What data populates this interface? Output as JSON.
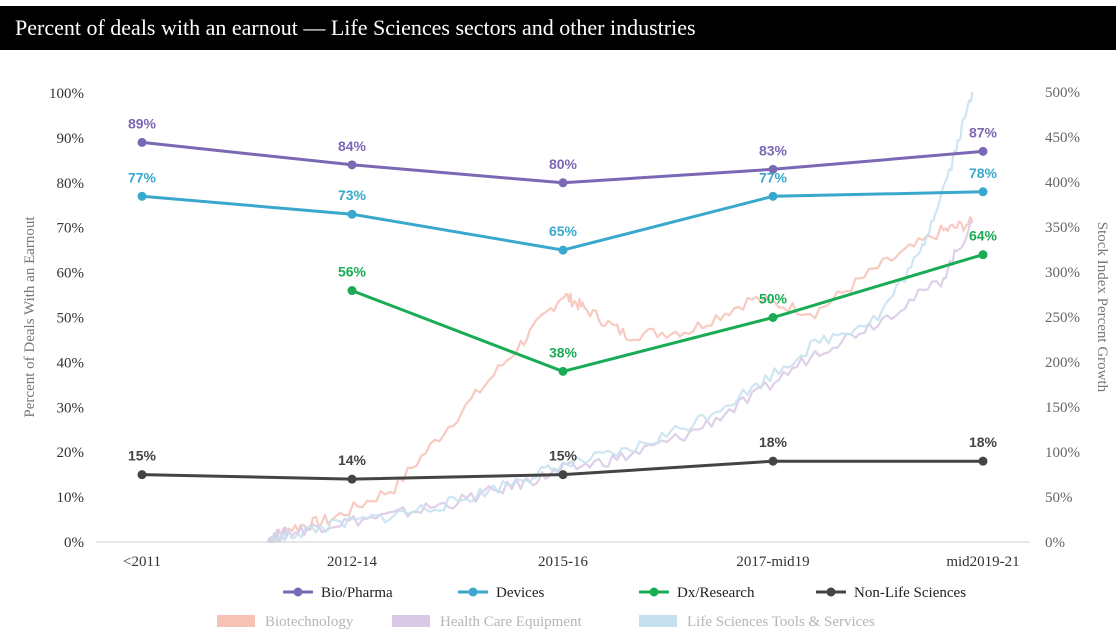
{
  "title": "Percent of deals with an earnout — Life Sciences sectors and other industries",
  "chart_data": {
    "type": "line",
    "categories": [
      "<2011",
      "2012-14",
      "2015-16",
      "2017-mid19",
      "mid2019-21"
    ],
    "ylabel": "Percent of Deals With an Earnout",
    "y2label": "Stock Index Percent Growth",
    "ylim": [
      0,
      100
    ],
    "y2lim": [
      0,
      500
    ],
    "yticks": [
      "0%",
      "10%",
      "20%",
      "30%",
      "40%",
      "50%",
      "60%",
      "70%",
      "80%",
      "90%",
      "100%"
    ],
    "y2ticks": [
      "0%",
      "50%",
      "100%",
      "150%",
      "200%",
      "250%",
      "300%",
      "350%",
      "400%",
      "450%",
      "500%"
    ],
    "grid": false,
    "series": [
      {
        "name": "Bio/Pharma",
        "color": "#7b68b5",
        "values": [
          89,
          84,
          80,
          83,
          87
        ],
        "labels": [
          "89%",
          "84%",
          "80%",
          "83%",
          "87%"
        ]
      },
      {
        "name": "Devices",
        "color": "#3aa8cc",
        "values": [
          77,
          73,
          65,
          77,
          78
        ],
        "labels": [
          "77%",
          "73%",
          "65%",
          "77%",
          "78%"
        ]
      },
      {
        "name": "Dx/Research",
        "color": "#1aab55",
        "values": [
          null,
          56,
          38,
          50,
          64
        ],
        "labels": [
          "",
          "56%",
          "38%",
          "50%",
          "64%"
        ]
      },
      {
        "name": "Non-Life Sciences",
        "color": "#444444",
        "values": [
          15,
          14,
          15,
          18,
          18
        ],
        "labels": [
          "15%",
          "14%",
          "15%",
          "18%",
          "18%"
        ]
      }
    ],
    "background_series": [
      {
        "name": "Biotechnology",
        "color": "#f6c2b6",
        "x": [
          1.6,
          1.7,
          1.9,
          2.2,
          2.5,
          2.8,
          3.0,
          3.1,
          3.3,
          3.6,
          3.9,
          4.2,
          4.5,
          4.8,
          4.95
        ],
        "y": [
          2,
          15,
          25,
          60,
          140,
          220,
          275,
          260,
          230,
          235,
          270,
          255,
          305,
          345,
          355
        ]
      },
      {
        "name": "Health Care Equipment",
        "color": "#d9c8e6",
        "x": [
          1.6,
          1.7,
          1.9,
          2.2,
          2.5,
          2.8,
          3.0,
          3.3,
          3.6,
          3.9,
          4.2,
          4.5,
          4.8,
          4.95
        ],
        "y": [
          5,
          10,
          20,
          30,
          45,
          65,
          80,
          95,
          120,
          160,
          210,
          245,
          290,
          355
        ]
      },
      {
        "name": "Life Sciences Tools & Services",
        "color": "#c7e0ef",
        "x": [
          1.6,
          1.7,
          1.9,
          2.2,
          2.5,
          2.8,
          3.0,
          3.3,
          3.6,
          3.9,
          4.2,
          4.5,
          4.7,
          4.85,
          4.95
        ],
        "y": [
          0,
          8,
          18,
          30,
          45,
          70,
          85,
          100,
          130,
          170,
          220,
          250,
          320,
          420,
          500
        ]
      }
    ],
    "legend_placement": "bottom"
  }
}
